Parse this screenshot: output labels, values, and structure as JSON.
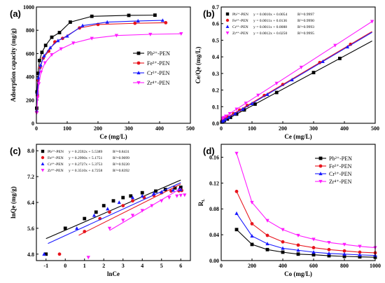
{
  "chart_data": [
    {
      "panel_label": "(a)",
      "type": "line",
      "xlabel": "Ce (mg/L)",
      "ylabel": "Adsorption capacity (mg/g)",
      "xlim": [
        0,
        500
      ],
      "ylim": [
        0,
        1000
      ],
      "xticks": [
        "0",
        "100",
        "200",
        "300",
        "400",
        "500"
      ],
      "yticks": [
        "0",
        "200",
        "400",
        "600",
        "800",
        "1000"
      ],
      "legend_position": "right",
      "series": [
        {
          "name": "Pb²⁺-PEN",
          "color": "#000000",
          "marker": "square",
          "x": [
            1,
            2,
            5,
            10,
            18,
            30,
            50,
            75,
            110,
            180,
            300,
            385
          ],
          "y": [
            130,
            270,
            430,
            540,
            610,
            670,
            740,
            780,
            870,
            920,
            928,
            930
          ]
        },
        {
          "name": "Fe³⁺-PEN",
          "color": "#e8141c",
          "marker": "circle",
          "x": [
            1,
            3,
            6,
            12,
            22,
            40,
            60,
            85,
            140,
            200,
            320,
            420
          ],
          "y": [
            100,
            240,
            370,
            480,
            560,
            620,
            700,
            730,
            820,
            850,
            860,
            865
          ]
        },
        {
          "name": "Cr³⁺-PEN",
          "color": "#1a1aff",
          "marker": "triangle-up",
          "x": [
            1,
            3,
            7,
            14,
            25,
            45,
            70,
            100,
            150,
            230,
            330,
            410
          ],
          "y": [
            110,
            260,
            390,
            500,
            580,
            650,
            710,
            750,
            840,
            870,
            880,
            885
          ]
        },
        {
          "name": "Zr⁴⁺-PEN",
          "color": "#ff1aff",
          "marker": "triangle-down",
          "x": [
            1,
            4,
            8,
            15,
            28,
            50,
            80,
            120,
            180,
            260,
            370,
            470
          ],
          "y": [
            90,
            220,
            340,
            440,
            520,
            590,
            640,
            690,
            730,
            755,
            765,
            770
          ]
        }
      ]
    },
    {
      "panel_label": "(b)",
      "type": "scatter",
      "xlabel": "Ce (mg/L)",
      "ylabel": "Ce/Qe (mg/L)",
      "xlim": [
        0,
        500
      ],
      "ylim": [
        0,
        0.7
      ],
      "xticks": [
        "0",
        "100",
        "200",
        "300",
        "400",
        "500"
      ],
      "yticks": [
        "0.0",
        "0.1",
        "0.2",
        "0.3",
        "0.4",
        "0.5",
        "0.6",
        "0.7"
      ],
      "legend_position": "top-left",
      "series": [
        {
          "name": "Pb²⁺-PEN",
          "equation": "y = 0.0010x + 0.0054",
          "r2": "R²=0.9997",
          "color": "#000000",
          "marker": "square",
          "slope": 0.001,
          "intercept": 0.0054,
          "x": [
            2,
            5,
            10,
            20,
            30,
            50,
            75,
            110,
            180,
            300,
            385
          ],
          "y": [
            0.0074,
            0.0104,
            0.0154,
            0.0254,
            0.0354,
            0.0554,
            0.0804,
            0.1154,
            0.1854,
            0.3054,
            0.3904
          ]
        },
        {
          "name": "Fe³⁺-PEN",
          "equation": "y = 0.0011x + 0.0136",
          "r2": "R²=0.9990",
          "color": "#e8141c",
          "marker": "circle",
          "slope": 0.0011,
          "intercept": 0.0136,
          "x": [
            3,
            6,
            12,
            22,
            40,
            60,
            85,
            140,
            200,
            320,
            420
          ],
          "y": [
            0.0169,
            0.0202,
            0.0268,
            0.0378,
            0.0576,
            0.0796,
            0.1071,
            0.1676,
            0.2336,
            0.3656,
            0.4756
          ]
        },
        {
          "name": "Cr³⁺-PEN",
          "equation": "y = 0.0011x + 0.0088",
          "r2": "R²=0.9993",
          "color": "#1a1aff",
          "marker": "triangle-up",
          "slope": 0.0011,
          "intercept": 0.0088,
          "x": [
            3,
            7,
            14,
            25,
            45,
            70,
            100,
            150,
            230,
            330,
            410
          ],
          "y": [
            0.0121,
            0.0165,
            0.0242,
            0.0363,
            0.0583,
            0.0858,
            0.1188,
            0.1738,
            0.2618,
            0.3718,
            0.4598
          ]
        },
        {
          "name": "Zr⁴⁺-PEN",
          "equation": "y = 0.0012x + 0.0250",
          "r2": "R²=0.9995",
          "color": "#ff1aff",
          "marker": "triangle-down",
          "slope": 0.0012,
          "intercept": 0.025,
          "x": [
            4,
            8,
            15,
            28,
            50,
            80,
            120,
            180,
            260,
            370,
            490
          ],
          "y": [
            0.0298,
            0.0346,
            0.043,
            0.0586,
            0.085,
            0.121,
            0.169,
            0.241,
            0.337,
            0.469,
            0.613
          ]
        }
      ]
    },
    {
      "panel_label": "(c)",
      "type": "scatter",
      "xlabel": "lnCe",
      "ylabel": "lnQe (mg/g)",
      "xlim": [
        -1.5,
        6.5
      ],
      "ylim": [
        4.6,
        8.2
      ],
      "xticks": [
        "-1",
        "0",
        "1",
        "2",
        "3",
        "4",
        "5",
        "6"
      ],
      "yticks": [
        "4.8",
        "5.6",
        "6.4",
        "7.2",
        "8.0"
      ],
      "legend_position": "top-left",
      "series": [
        {
          "name": "Pb²⁺-PEN",
          "equation": "y = 0.2592x + 5.5389",
          "r2": "R²=0.8431",
          "color": "#000000",
          "marker": "square",
          "slope": 0.2592,
          "intercept": 5.5389,
          "fit_x": [
            -1,
            6
          ],
          "x": [
            -1.0,
            0.0,
            1.0,
            1.6,
            2.0,
            2.5,
            3.0,
            3.4,
            4.0,
            4.7,
            5.2,
            5.7,
            6.0
          ],
          "y": [
            4.8,
            5.6,
            5.9,
            6.1,
            6.3,
            6.45,
            6.55,
            6.6,
            6.7,
            6.75,
            6.8,
            6.85,
            6.87
          ]
        },
        {
          "name": "Fe³⁺-PEN",
          "equation": "y = 0.2990x + 5.1751",
          "r2": "R²=0.9099",
          "color": "#e8141c",
          "marker": "circle",
          "slope": 0.299,
          "intercept": 5.1751,
          "fit_x": [
            0.7,
            6
          ],
          "x": [
            -0.3,
            1.0,
            1.8,
            2.3,
            3.0,
            3.5,
            4.1,
            4.6,
            5.0,
            5.5,
            5.9,
            6.05
          ],
          "y": [
            4.8,
            5.5,
            5.9,
            6.1,
            6.3,
            6.45,
            6.55,
            6.62,
            6.7,
            6.75,
            6.76,
            6.77
          ]
        },
        {
          "name": "Cr³⁺-PEN",
          "equation": "y = 0.2727x + 5.3753",
          "r2": "R²=0.9220",
          "color": "#1a1aff",
          "marker": "triangle-up",
          "slope": 0.2727,
          "intercept": 5.3753,
          "fit_x": [
            -0.9,
            6
          ],
          "x": [
            -1.1,
            0.6,
            1.5,
            2.2,
            2.8,
            3.5,
            4.0,
            4.6,
            5.0,
            5.6,
            5.9,
            6.0
          ],
          "y": [
            4.8,
            5.6,
            6.0,
            6.2,
            6.4,
            6.55,
            6.6,
            6.68,
            6.72,
            6.78,
            6.8,
            6.8
          ]
        },
        {
          "name": "Zr⁴⁺-PEN",
          "equation": "y = 0.3510x + 4.7258",
          "r2": "R²=0.8392",
          "color": "#ff1aff",
          "marker": "triangle-down",
          "slope": 0.351,
          "intercept": 4.7258,
          "fit_x": [
            2.3,
            6
          ],
          "x": [
            1.2,
            2.3,
            3.0,
            3.5,
            4.0,
            4.5,
            5.0,
            5.4,
            5.8,
            6.0,
            6.2
          ],
          "y": [
            4.7,
            5.6,
            5.85,
            6.0,
            6.15,
            6.3,
            6.45,
            6.55,
            6.6,
            6.62,
            6.63
          ]
        }
      ]
    },
    {
      "panel_label": "(d)",
      "type": "line",
      "xlabel": "Co (mg/L)",
      "ylabel": "RL",
      "xlim": [
        0,
        1000
      ],
      "ylim": [
        0,
        0.18
      ],
      "xticks": [
        "0",
        "200",
        "400",
        "600",
        "800",
        "1000"
      ],
      "yticks": [
        "0.00",
        "0.04",
        "0.08",
        "0.12",
        "0.16"
      ],
      "legend_position": "top-right",
      "series": [
        {
          "name": "Pb²⁺-PEN",
          "color": "#000000",
          "marker": "square",
          "x": [
            100,
            200,
            300,
            400,
            500,
            600,
            700,
            800,
            900,
            1000
          ],
          "y": [
            0.048,
            0.025,
            0.017,
            0.013,
            0.01,
            0.009,
            0.0075,
            0.0065,
            0.0058,
            0.0052
          ]
        },
        {
          "name": "Fe³⁺-PEN",
          "color": "#e8141c",
          "marker": "circle",
          "x": [
            100,
            200,
            300,
            400,
            500,
            600,
            700,
            800,
            900,
            1000
          ],
          "y": [
            0.107,
            0.057,
            0.039,
            0.029,
            0.024,
            0.02,
            0.017,
            0.015,
            0.013,
            0.012
          ]
        },
        {
          "name": "Cr³⁺-PEN",
          "color": "#1a1aff",
          "marker": "triangle-up",
          "x": [
            100,
            200,
            300,
            400,
            500,
            600,
            700,
            800,
            900,
            1000
          ],
          "y": [
            0.073,
            0.038,
            0.026,
            0.019,
            0.016,
            0.013,
            0.011,
            0.01,
            0.0088,
            0.008
          ]
        },
        {
          "name": "Zr⁴⁺-PEN",
          "color": "#ff1aff",
          "marker": "triangle-down",
          "x": [
            100,
            200,
            300,
            400,
            500,
            600,
            700,
            800,
            900,
            1000
          ],
          "y": [
            0.166,
            0.09,
            0.062,
            0.048,
            0.039,
            0.033,
            0.028,
            0.025,
            0.022,
            0.02
          ]
        }
      ]
    }
  ]
}
